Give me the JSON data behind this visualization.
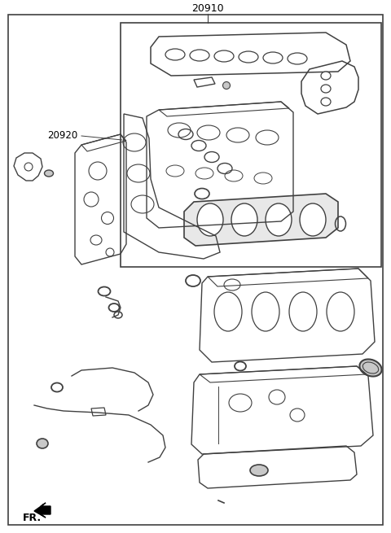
{
  "title": "20910",
  "label_20920": "20920",
  "label_fr": "FR.",
  "bg_color": "#ffffff",
  "lc": "#404040",
  "fill_white": "#ffffff",
  "fill_none": "none",
  "fill_gray": "#c8c8c8",
  "fill_ltgray": "#e8e8e8"
}
